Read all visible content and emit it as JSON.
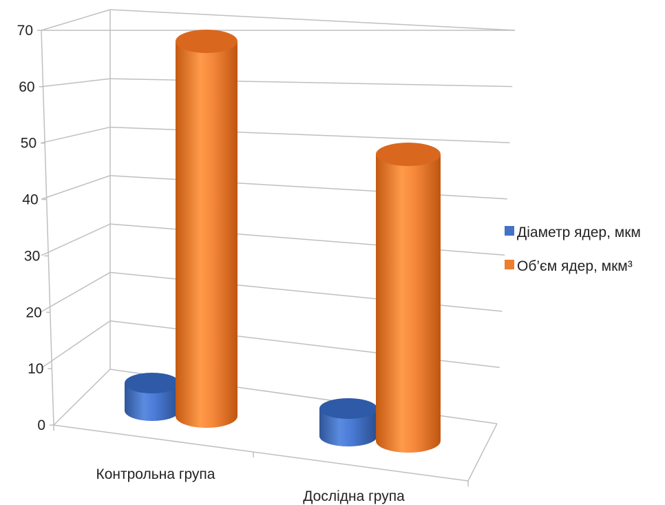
{
  "chart_data": {
    "type": "bar",
    "style": "3d-cylinder",
    "categories": [
      "Контрольна група",
      "Дослідна група"
    ],
    "series": [
      {
        "name": "Діаметр ядер, мкм",
        "values": [
          5,
          5
        ],
        "color": "#4472C4"
      },
      {
        "name": "Об’єм ядер, мкм³",
        "values": [
          68,
          52
        ],
        "color": "#ED7D31"
      }
    ],
    "ylim": [
      0,
      70
    ],
    "yticks": [
      0,
      10,
      20,
      30,
      40,
      50,
      60,
      70
    ],
    "grid": true,
    "legend": "right"
  }
}
